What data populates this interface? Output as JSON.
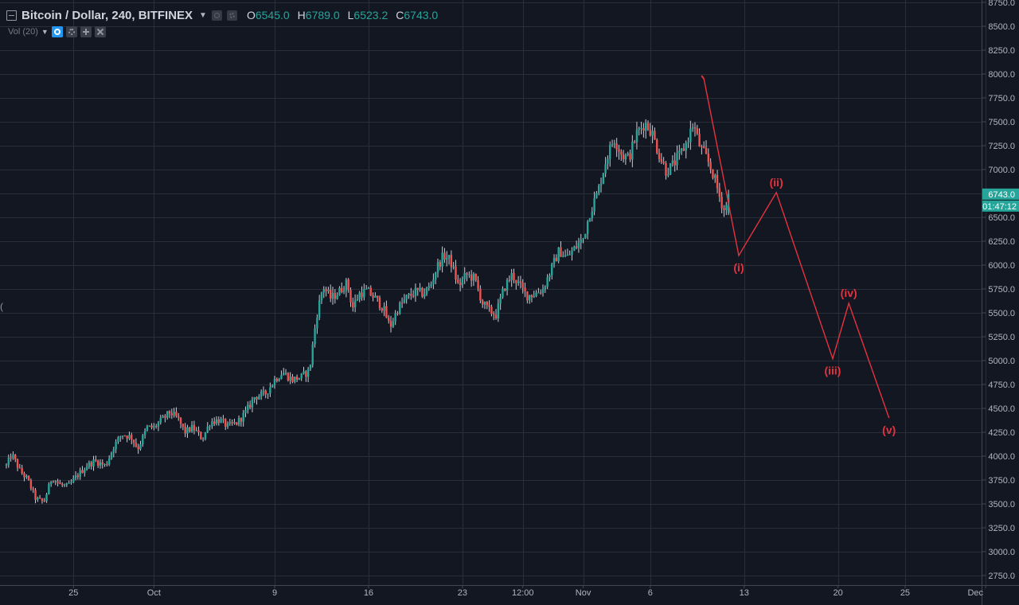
{
  "legend": {
    "symbol": "Bitcoin / Dollar, 240, BITFINEX",
    "open_label": "O",
    "open_value": "6545.0",
    "high_label": "H",
    "high_value": "6789.0",
    "low_label": "L",
    "low_value": "6523.2",
    "close_label": "C",
    "close_value": "6743.0"
  },
  "volume_indicator": {
    "label": "Vol (20)"
  },
  "side_handle_glyph": "(",
  "price_label": {
    "value": "6743.0",
    "countdown": "01:47:12"
  },
  "colors": {
    "background": "#131722",
    "grid": "#2a2e39",
    "up": "#26a69a",
    "down": "#ef5350",
    "wick": "#c9ccd4",
    "wave": "#e5323e",
    "axis_text": "#b2b5be",
    "price_tag": "#26a69a"
  },
  "chart_data": {
    "type": "candlestick",
    "title": "Bitcoin / Dollar, 240, BITFINEX",
    "ylim": [
      2600,
      8800
    ],
    "y_ticks": [
      2750,
      3000,
      3250,
      3500,
      3750,
      4000,
      4250,
      4500,
      4750,
      5000,
      5250,
      5500,
      5750,
      6000,
      6250,
      6500,
      6750,
      7000,
      7250,
      7500,
      7750,
      8000,
      8250,
      8500,
      8750
    ],
    "y_tick_labels": [
      "2750.0",
      "3000.0",
      "3250.0",
      "3500.0",
      "3750.0",
      "4000.0",
      "4250.0",
      "4500.0",
      "4750.0",
      "5000.0",
      "5250.0",
      "5500.0",
      "5750.0",
      "6000.0",
      "6250.0",
      "6500.0",
      "6750.0",
      "7000.0",
      "7250.0",
      "7500.0",
      "7750.0",
      "8000.0",
      "8250.0",
      "8500.0",
      "8750.0"
    ],
    "x_ticks": [
      {
        "label": "25",
        "day": 24
      },
      {
        "label": "Oct",
        "day": 30
      },
      {
        "label": "9",
        "day": 39
      },
      {
        "label": "16",
        "day": 46
      },
      {
        "label": "23",
        "day": 53
      },
      {
        "label": "12:00",
        "day": 57.5
      },
      {
        "label": "Nov",
        "day": 62
      },
      {
        "label": "6",
        "day": 67
      },
      {
        "label": "13",
        "day": 74
      },
      {
        "label": "20",
        "day": 81
      },
      {
        "label": "25",
        "day": 86
      },
      {
        "label": "Dec",
        "day": 92
      }
    ],
    "x_range": [
      19,
      92.4
    ],
    "grid": true,
    "price_path": [
      [
        19,
        3900
      ],
      [
        19.4,
        4020
      ],
      [
        20,
        3850
      ],
      [
        20.6,
        3750
      ],
      [
        21.2,
        3550
      ],
      [
        21.8,
        3520
      ],
      [
        22.4,
        3780
      ],
      [
        23,
        3700
      ],
      [
        23.6,
        3680
      ],
      [
        24.3,
        3800
      ],
      [
        25,
        3900
      ],
      [
        25.6,
        3950
      ],
      [
        26.4,
        3900
      ],
      [
        27,
        4100
      ],
      [
        27.6,
        4230
      ],
      [
        28.3,
        4200
      ],
      [
        28.8,
        4080
      ],
      [
        29.5,
        4300
      ],
      [
        30,
        4300
      ],
      [
        30.6,
        4380
      ],
      [
        31.2,
        4460
      ],
      [
        31.8,
        4390
      ],
      [
        32.3,
        4250
      ],
      [
        32.9,
        4300
      ],
      [
        33.6,
        4180
      ],
      [
        34.2,
        4360
      ],
      [
        34.9,
        4380
      ],
      [
        35.5,
        4310
      ],
      [
        36.2,
        4350
      ],
      [
        36.8,
        4450
      ],
      [
        37.5,
        4620
      ],
      [
        38.3,
        4650
      ],
      [
        39,
        4800
      ],
      [
        39.6,
        4880
      ],
      [
        40.3,
        4800
      ],
      [
        41,
        4830
      ],
      [
        41.6,
        4900
      ],
      [
        42.1,
        5450
      ],
      [
        42.6,
        5780
      ],
      [
        43.2,
        5650
      ],
      [
        43.8,
        5720
      ],
      [
        44.4,
        5820
      ],
      [
        44.8,
        5550
      ],
      [
        45.3,
        5700
      ],
      [
        45.9,
        5730
      ],
      [
        46.5,
        5650
      ],
      [
        47.1,
        5550
      ],
      [
        47.6,
        5350
      ],
      [
        48.2,
        5550
      ],
      [
        48.8,
        5650
      ],
      [
        49.5,
        5720
      ],
      [
        50.1,
        5700
      ],
      [
        50.6,
        5780
      ],
      [
        51.1,
        5980
      ],
      [
        51.6,
        6100
      ],
      [
        52.1,
        6050
      ],
      [
        52.7,
        5780
      ],
      [
        53.3,
        5900
      ],
      [
        53.9,
        5860
      ],
      [
        54.5,
        5600
      ],
      [
        55,
        5520
      ],
      [
        55.5,
        5480
      ],
      [
        56.1,
        5760
      ],
      [
        56.7,
        5900
      ],
      [
        57.3,
        5780
      ],
      [
        57.8,
        5680
      ],
      [
        58.4,
        5700
      ],
      [
        59,
        5750
      ],
      [
        59.6,
        5950
      ],
      [
        60.2,
        6150
      ],
      [
        60.8,
        6080
      ],
      [
        61.4,
        6180
      ],
      [
        62,
        6280
      ],
      [
        62.5,
        6550
      ],
      [
        63.1,
        6770
      ],
      [
        63.7,
        7100
      ],
      [
        64.3,
        7330
      ],
      [
        64.9,
        7150
      ],
      [
        65.4,
        7120
      ],
      [
        66,
        7380
      ],
      [
        66.6,
        7490
      ],
      [
        67.1,
        7400
      ],
      [
        67.6,
        7180
      ],
      [
        68.2,
        6980
      ],
      [
        68.7,
        7050
      ],
      [
        69.2,
        7150
      ],
      [
        69.7,
        7280
      ],
      [
        70.2,
        7480
      ],
      [
        70.7,
        7240
      ],
      [
        71.2,
        7120
      ],
      [
        71.7,
        6950
      ],
      [
        72.2,
        6700
      ],
      [
        72.6,
        6545
      ],
      [
        72.8,
        6743
      ]
    ],
    "wave_projection": {
      "start": {
        "day": 71.0,
        "price": 7950
      },
      "points": [
        {
          "label": "(i)",
          "day": 73.6,
          "price": 6100
        },
        {
          "label": "(ii)",
          "day": 76.4,
          "price": 6760
        },
        {
          "label": "(iii)",
          "day": 80.6,
          "price": 5020
        },
        {
          "label": "(iv)",
          "day": 81.8,
          "price": 5600
        },
        {
          "label": "(v)",
          "day": 84.8,
          "price": 4400
        }
      ],
      "last_candle_close": 6743
    }
  }
}
